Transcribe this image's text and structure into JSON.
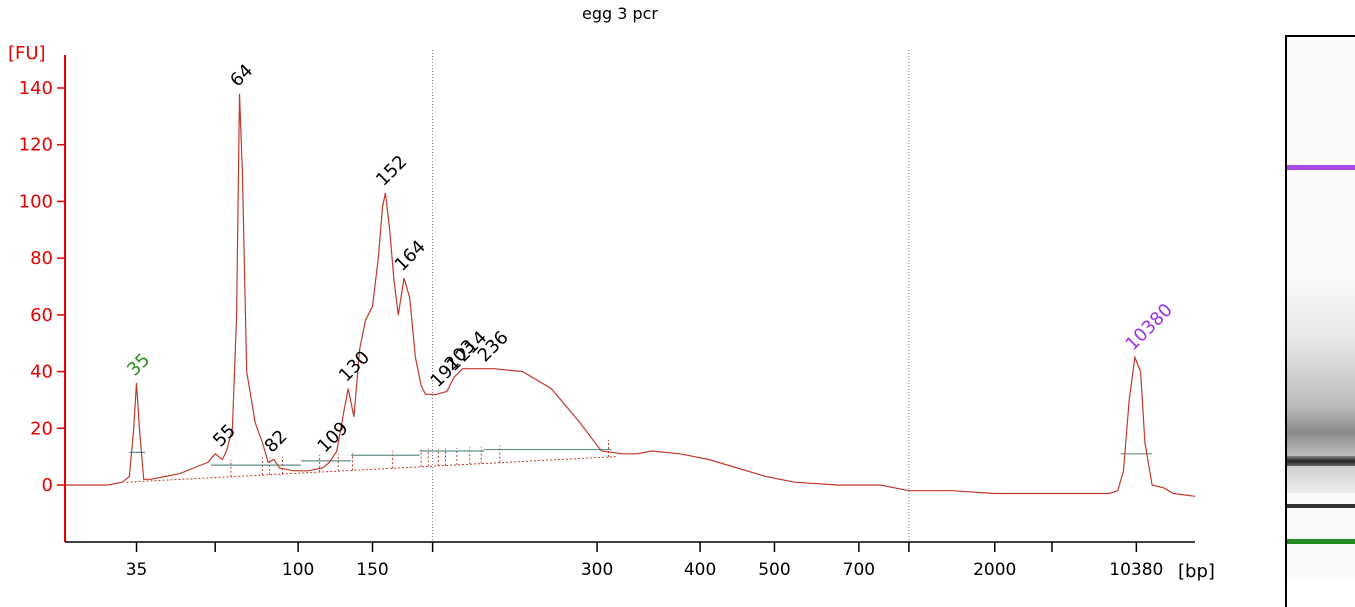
{
  "chart_data": {
    "type": "line",
    "title": "egg 3 pcr",
    "ylabel": "[FU]",
    "xlabel": "[bp]",
    "ylim": [
      -20,
      150
    ],
    "yticks": [
      0,
      20,
      40,
      60,
      80,
      100,
      120,
      140
    ],
    "xticks": [
      {
        "label": "35",
        "t": 46
      },
      {
        "label": "",
        "t": 51.5
      },
      {
        "label": "100",
        "t": 57.3
      },
      {
        "label": "150",
        "t": 62.5
      },
      {
        "label": "",
        "t": 66.7
      },
      {
        "label": "300",
        "t": 78.2
      },
      {
        "label": "400",
        "t": 85.4
      },
      {
        "label": "500",
        "t": 90.6
      },
      {
        "label": "700",
        "t": 96.5
      },
      {
        "label": "",
        "t": 100
      },
      {
        "label": "2000",
        "t": 106
      },
      {
        "label": "",
        "t": 110
      },
      {
        "label": "10380",
        "t": 115.9
      }
    ],
    "xlim": [
      41,
      120
    ],
    "dashed_markers_t": [
      66.7,
      100
    ],
    "series": [
      {
        "color": "#c0392b",
        "points": [
          [
            41,
            0
          ],
          [
            44,
            0
          ],
          [
            45,
            1
          ],
          [
            45.5,
            3
          ],
          [
            45.8,
            20
          ],
          [
            46,
            36
          ],
          [
            46.2,
            20
          ],
          [
            46.5,
            2
          ],
          [
            47,
            2
          ],
          [
            48,
            3
          ],
          [
            49,
            4
          ],
          [
            50,
            6
          ],
          [
            51,
            8
          ],
          [
            51.5,
            11
          ],
          [
            52,
            9
          ],
          [
            52.3,
            12
          ],
          [
            52.7,
            20
          ],
          [
            53,
            60
          ],
          [
            53.2,
            138
          ],
          [
            53.4,
            110
          ],
          [
            53.7,
            40
          ],
          [
            54.3,
            22
          ],
          [
            54.8,
            15
          ],
          [
            55.2,
            8
          ],
          [
            55.6,
            9
          ],
          [
            56,
            6
          ],
          [
            57,
            5
          ],
          [
            58,
            5
          ],
          [
            59,
            6
          ],
          [
            59.5,
            8
          ],
          [
            60,
            12
          ],
          [
            60.5,
            26
          ],
          [
            60.8,
            34
          ],
          [
            61.2,
            24
          ],
          [
            61.6,
            48
          ],
          [
            62,
            58
          ],
          [
            62.5,
            63
          ],
          [
            62.9,
            80
          ],
          [
            63.2,
            98
          ],
          [
            63.4,
            103
          ],
          [
            63.7,
            90
          ],
          [
            64,
            72
          ],
          [
            64.3,
            60
          ],
          [
            64.7,
            73
          ],
          [
            65.1,
            66
          ],
          [
            65.5,
            45
          ],
          [
            65.9,
            35
          ],
          [
            66.2,
            32
          ],
          [
            67,
            32
          ],
          [
            67.7,
            33
          ],
          [
            68.2,
            38
          ],
          [
            68.8,
            41
          ],
          [
            71,
            41
          ],
          [
            73,
            40
          ],
          [
            75,
            34
          ],
          [
            77,
            22
          ],
          [
            78.5,
            12
          ],
          [
            80,
            11
          ],
          [
            81,
            11
          ],
          [
            82,
            12
          ],
          [
            84,
            11
          ],
          [
            86,
            9
          ],
          [
            88,
            6
          ],
          [
            90,
            3
          ],
          [
            92,
            1
          ],
          [
            95,
            0
          ],
          [
            98,
            0
          ],
          [
            100,
            -2
          ],
          [
            103,
            -2
          ],
          [
            106,
            -3
          ],
          [
            108,
            -3
          ],
          [
            112,
            -3
          ],
          [
            114,
            -3
          ],
          [
            114.6,
            -2
          ],
          [
            115,
            5
          ],
          [
            115.4,
            30
          ],
          [
            115.8,
            45
          ],
          [
            116.2,
            40
          ],
          [
            116.5,
            15
          ],
          [
            117,
            0
          ],
          [
            117.8,
            -1
          ],
          [
            118.5,
            -3
          ],
          [
            120,
            -4
          ]
        ]
      }
    ],
    "peaks": [
      {
        "label": "35",
        "t": 46,
        "fu": 36,
        "color": "#2e8b22"
      },
      {
        "label": "55",
        "t": 52,
        "fu": 11,
        "color": "#000000"
      },
      {
        "label": "64",
        "t": 53.2,
        "fu": 138,
        "color": "#000000"
      },
      {
        "label": "82",
        "t": 55.6,
        "fu": 9,
        "color": "#000000"
      },
      {
        "label": "109",
        "t": 59.3,
        "fu": 9,
        "color": "#000000"
      },
      {
        "label": "130",
        "t": 60.8,
        "fu": 34,
        "color": "#000000"
      },
      {
        "label": "152",
        "t": 63.4,
        "fu": 103,
        "color": "#000000"
      },
      {
        "label": "164",
        "t": 64.7,
        "fu": 73,
        "color": "#000000"
      },
      {
        "label": "191",
        "t": 67.2,
        "fu": 32,
        "color": "#000000"
      },
      {
        "label": "203",
        "t": 68.2,
        "fu": 38,
        "color": "#000000"
      },
      {
        "label": "214",
        "t": 69,
        "fu": 41,
        "color": "#000000"
      },
      {
        "label": "236",
        "t": 70.5,
        "fu": 41,
        "color": "#000000"
      },
      {
        "label": "10380",
        "t": 115.8,
        "fu": 45,
        "color": "#9b30e8"
      }
    ],
    "colors": {
      "axis": "#e60000",
      "trace": "#c0392b",
      "baseline": "#5f8f8a",
      "lower_marker": "#2e8b22",
      "upper_marker": "#9b30e8"
    }
  },
  "gel": {
    "bands": [
      {
        "pos": 0.225,
        "color": "#a84ae8",
        "height": 5
      },
      {
        "pos": 0.82,
        "color": "#333333",
        "height": 4
      },
      {
        "pos": 0.88,
        "color": "#238a22",
        "height": 5
      }
    ]
  }
}
